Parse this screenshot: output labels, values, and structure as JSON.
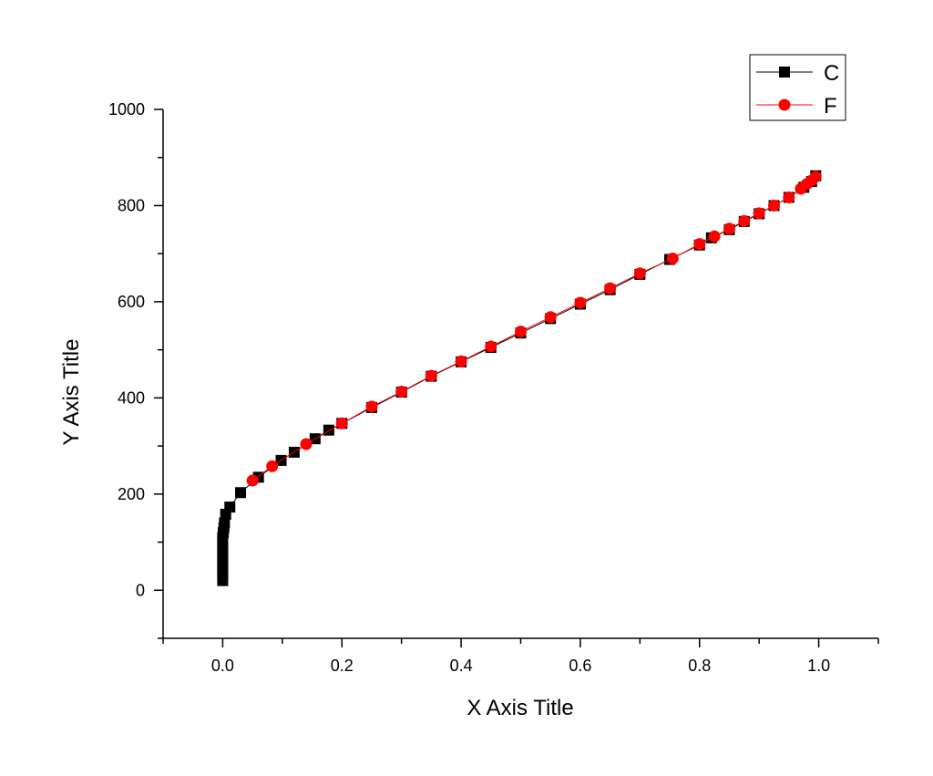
{
  "chart_data": {
    "type": "scatter",
    "title": "",
    "xlabel": "X Axis Title",
    "ylabel": "Y Axis Title",
    "xlim": [
      -0.1,
      1.1
    ],
    "ylim": [
      -100,
      1000
    ],
    "xticks": [
      "0.0",
      "0.2",
      "0.4",
      "0.6",
      "0.8",
      "1.0"
    ],
    "yticks": [
      "0",
      "200",
      "400",
      "600",
      "800",
      "1000"
    ],
    "legend": "top-right",
    "grid": false,
    "series": [
      {
        "name": "C",
        "color": "#000000",
        "marker": "square",
        "line": true,
        "points": [
          [
            0.0,
            20
          ],
          [
            0.0,
            30
          ],
          [
            0.0,
            40
          ],
          [
            0.0,
            50
          ],
          [
            0.0,
            60
          ],
          [
            0.0,
            70
          ],
          [
            0.0,
            80
          ],
          [
            0.0,
            90
          ],
          [
            0.0,
            100
          ],
          [
            0.0,
            110
          ],
          [
            0.001,
            120
          ],
          [
            0.002,
            130
          ],
          [
            0.003,
            140
          ],
          [
            0.005,
            158
          ],
          [
            0.012,
            173
          ],
          [
            0.03,
            203
          ],
          [
            0.06,
            235
          ],
          [
            0.098,
            270
          ],
          [
            0.12,
            287
          ],
          [
            0.155,
            315
          ],
          [
            0.178,
            333
          ],
          [
            0.2,
            347
          ],
          [
            0.25,
            380
          ],
          [
            0.3,
            412
          ],
          [
            0.35,
            445
          ],
          [
            0.4,
            475
          ],
          [
            0.45,
            505
          ],
          [
            0.5,
            535
          ],
          [
            0.55,
            565
          ],
          [
            0.6,
            595
          ],
          [
            0.65,
            625
          ],
          [
            0.7,
            657
          ],
          [
            0.75,
            688
          ],
          [
            0.8,
            718
          ],
          [
            0.82,
            733
          ],
          [
            0.85,
            750
          ],
          [
            0.875,
            767
          ],
          [
            0.9,
            783
          ],
          [
            0.925,
            800
          ],
          [
            0.95,
            817
          ],
          [
            0.975,
            838
          ],
          [
            0.988,
            850
          ],
          [
            0.995,
            862
          ]
        ]
      },
      {
        "name": "F",
        "color": "#ff0000",
        "marker": "circle",
        "line": true,
        "points": [
          [
            0.05,
            228
          ],
          [
            0.083,
            258
          ],
          [
            0.14,
            304
          ],
          [
            0.2,
            347
          ],
          [
            0.25,
            382
          ],
          [
            0.3,
            413
          ],
          [
            0.35,
            446
          ],
          [
            0.4,
            476
          ],
          [
            0.45,
            507
          ],
          [
            0.5,
            538
          ],
          [
            0.55,
            568
          ],
          [
            0.6,
            598
          ],
          [
            0.65,
            628
          ],
          [
            0.7,
            659
          ],
          [
            0.755,
            690
          ],
          [
            0.8,
            720
          ],
          [
            0.825,
            736
          ],
          [
            0.85,
            752
          ],
          [
            0.875,
            768
          ],
          [
            0.9,
            784
          ],
          [
            0.925,
            800
          ],
          [
            0.95,
            817
          ],
          [
            0.97,
            835
          ],
          [
            0.98,
            845
          ],
          [
            0.988,
            852
          ],
          [
            0.995,
            860
          ]
        ]
      }
    ]
  }
}
